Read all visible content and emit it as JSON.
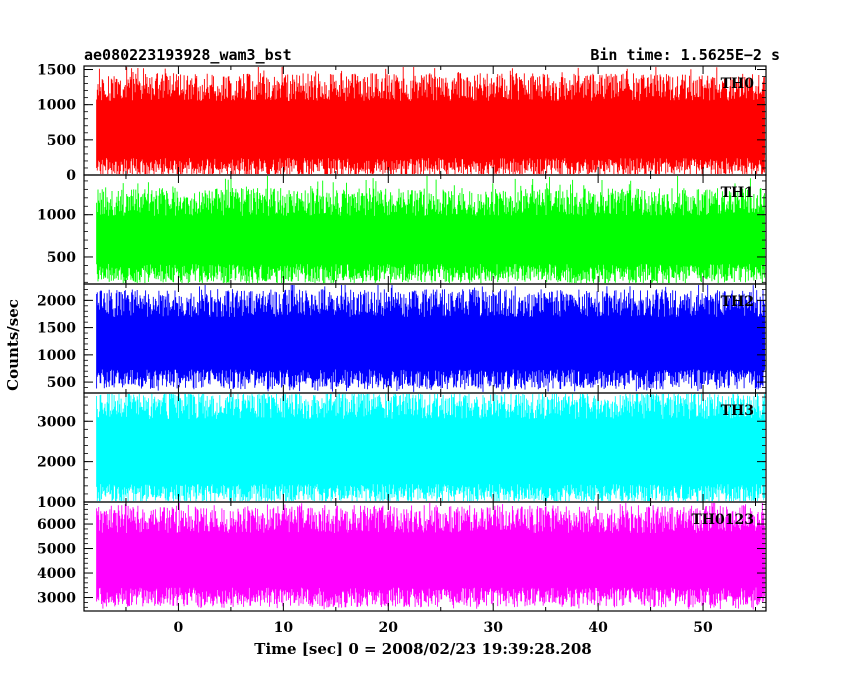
{
  "header": {
    "left_title": "ae080223193928_wam3_bst",
    "right_title": "Bin time: 1.5625E−2 s"
  },
  "chart_data": {
    "type": "line",
    "xlabel": "Time [sec] 0 = 2008/02/23 19:39:28.208",
    "ylabel": "Counts/sec",
    "xlim": [
      -9,
      56
    ],
    "x_range": [
      -7.8,
      55.9
    ],
    "x_ticks": [
      0,
      10,
      20,
      30,
      40,
      50
    ],
    "x_tick_labels": [
      "0",
      "10",
      "20",
      "30",
      "40",
      "50"
    ],
    "panels": [
      {
        "name": "TH0",
        "color": "#ff0000",
        "ylim": [
          0,
          1550
        ],
        "y_ticks": [
          0,
          500,
          1000,
          1500
        ],
        "y_tick_labels": [
          "0",
          "500",
          "1000",
          "1500"
        ],
        "typical_range": [
          100,
          1250
        ],
        "extreme_range": [
          60,
          1550
        ]
      },
      {
        "name": "TH1",
        "color": "#00ff00",
        "ylim": [
          180,
          1470
        ],
        "y_ticks": [
          500,
          1000
        ],
        "y_tick_labels": [
          "500",
          "1000"
        ],
        "typical_range": [
          300,
          1150
        ],
        "extreme_range": [
          190,
          1470
        ]
      },
      {
        "name": "TH2",
        "color": "#0000ff",
        "ylim": [
          300,
          2300
        ],
        "y_ticks": [
          500,
          1000,
          1500,
          2000
        ],
        "y_tick_labels": [
          "500",
          "1000",
          "1500",
          "2000"
        ],
        "typical_range": [
          550,
          1950
        ],
        "extreme_range": [
          320,
          2300
        ]
      },
      {
        "name": "TH3",
        "color": "#00ffff",
        "ylim": [
          1000,
          3700
        ],
        "y_ticks": [
          1000,
          2000,
          3000
        ],
        "y_tick_labels": [
          "1000",
          "2000",
          "3000"
        ],
        "typical_range": [
          1200,
          3400
        ],
        "extreme_range": [
          1050,
          3700
        ]
      },
      {
        "name": "TH0123",
        "color": "#ff00ff",
        "ylim": [
          2450,
          6900
        ],
        "y_ticks": [
          3000,
          4000,
          5000,
          6000
        ],
        "y_tick_labels": [
          "3000",
          "4000",
          "5000",
          "6000"
        ],
        "typical_range": [
          3000,
          6200
        ],
        "extreme_range": [
          2500,
          6900
        ]
      }
    ]
  }
}
